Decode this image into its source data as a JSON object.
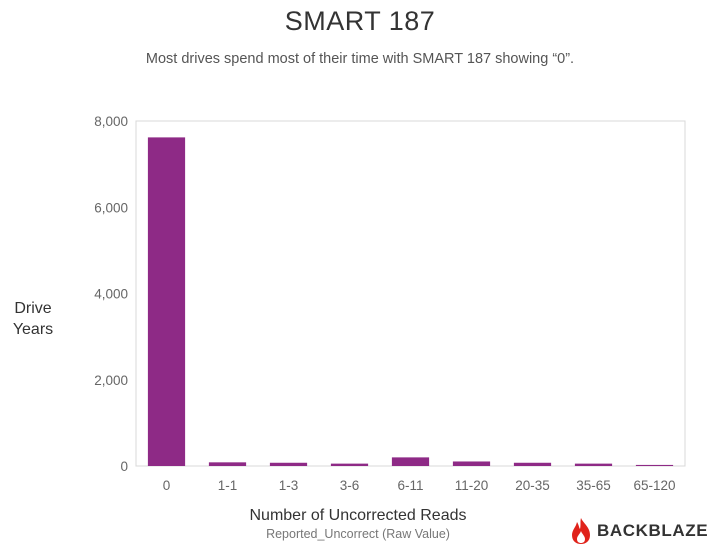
{
  "chart_data": {
    "type": "bar",
    "title": "SMART 187",
    "subtitle": "Most drives spend most of their time with SMART 187 showing “0”.",
    "ylabel_lines": [
      "Drive",
      "Years"
    ],
    "xlabel": "Number of Uncorrected Reads",
    "xsublabel": "Reported_Uncorrect (Raw Value)",
    "categories": [
      "0",
      "1-1",
      "1-3",
      "3-6",
      "6-11",
      "11-20",
      "20-35",
      "35-65",
      "65-120"
    ],
    "values": [
      7620,
      85,
      75,
      55,
      200,
      105,
      75,
      55,
      25
    ],
    "ylim": [
      0,
      8000
    ],
    "yticks": [
      0,
      2000,
      4000,
      6000,
      8000
    ],
    "ytick_labels": [
      "0",
      "2,000",
      "4,000",
      "6,000",
      "8,000"
    ],
    "grid": false,
    "bar_color": "#8e2a86"
  },
  "brand": {
    "name": "BACKBLAZE",
    "logo_icon": "flame-icon",
    "logo_color": "#e0231b"
  }
}
